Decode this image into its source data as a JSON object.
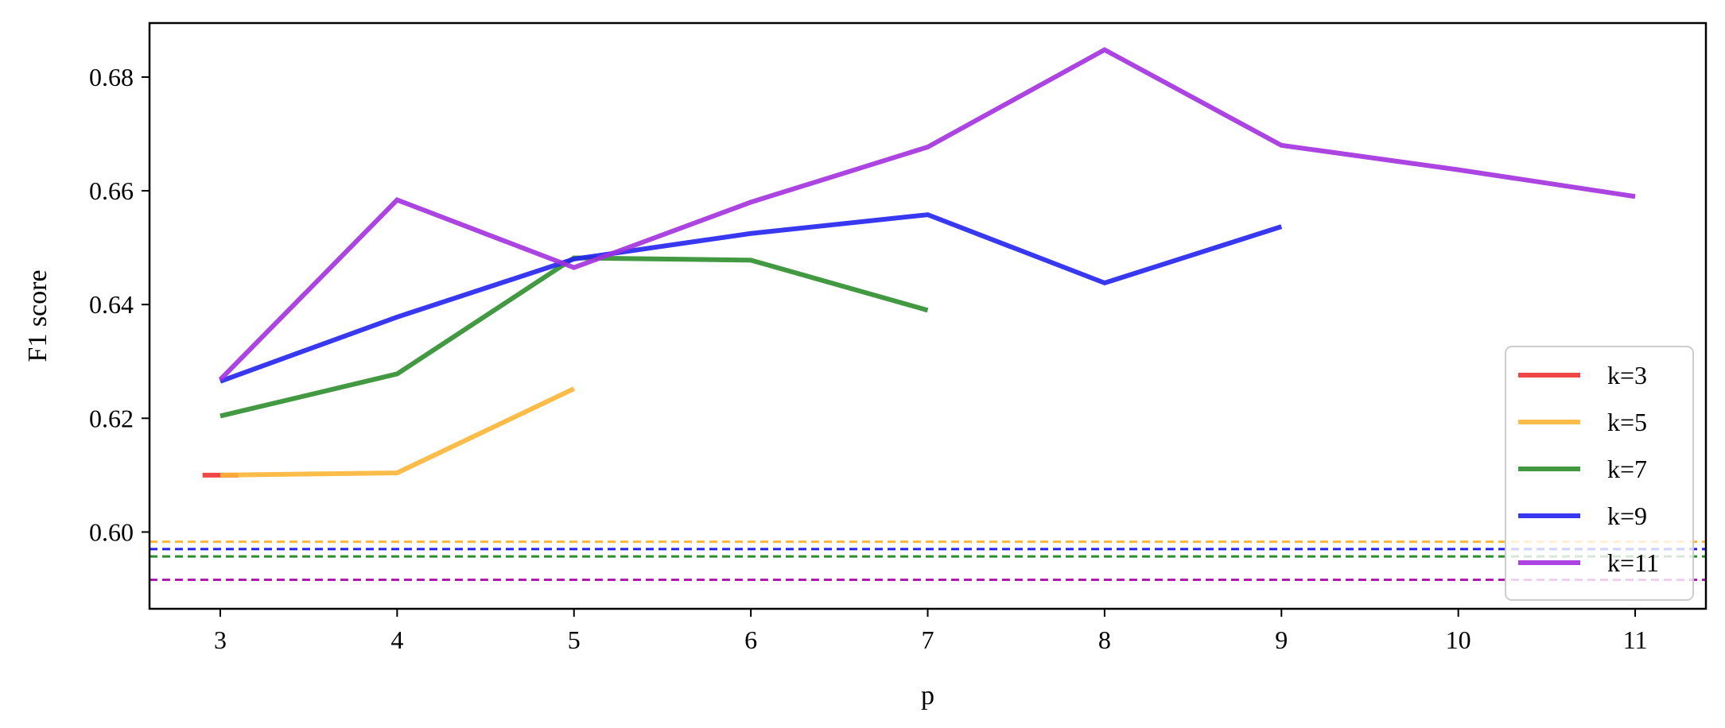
{
  "chart_data": {
    "type": "line",
    "title": "",
    "xlabel": "p",
    "ylabel": "F1 score",
    "xlim": [
      2.6,
      11.4
    ],
    "ylim": [
      0.5865,
      0.6895
    ],
    "xticks": [
      3,
      4,
      5,
      6,
      7,
      8,
      9,
      10,
      11
    ],
    "yticks": [
      0.6,
      0.62,
      0.64,
      0.66,
      0.68
    ],
    "ytick_labels": [
      "0.60",
      "0.62",
      "0.64",
      "0.66",
      "0.68"
    ],
    "grid": false,
    "legend_position": "lower right",
    "series": [
      {
        "name": "k=3",
        "color": "#f03232",
        "x": [
          2.9,
          3.1
        ],
        "y": [
          0.61,
          0.61
        ]
      },
      {
        "name": "k=5",
        "color": "#fcb535",
        "x": [
          3,
          4,
          5
        ],
        "y": [
          0.61,
          0.6104,
          0.6252
        ]
      },
      {
        "name": "k=7",
        "color": "#2e8e2e",
        "x": [
          3,
          4,
          5,
          6,
          7
        ],
        "y": [
          0.6204,
          0.6278,
          0.6482,
          0.6478,
          0.639
        ]
      },
      {
        "name": "k=9",
        "color": "#2222f0",
        "x": [
          3,
          4,
          5,
          6,
          7,
          8,
          9
        ],
        "y": [
          0.6265,
          0.6378,
          0.648,
          0.6525,
          0.6558,
          0.6438,
          0.6537
        ]
      },
      {
        "name": "k=11",
        "color": "#a230de",
        "x": [
          3,
          4,
          5,
          6,
          7,
          8,
          9,
          10,
          11
        ],
        "y": [
          0.6268,
          0.6584,
          0.6465,
          0.658,
          0.6677,
          0.6848,
          0.668,
          0.6637,
          0.659
        ]
      }
    ],
    "reference_lines": [
      {
        "color": "#fcb535",
        "y": 0.5983
      },
      {
        "color": "#2222f0",
        "y": 0.597
      },
      {
        "color": "#2e8e2e",
        "y": 0.5957
      },
      {
        "color": "#b01cb0",
        "y": 0.5916
      }
    ]
  }
}
